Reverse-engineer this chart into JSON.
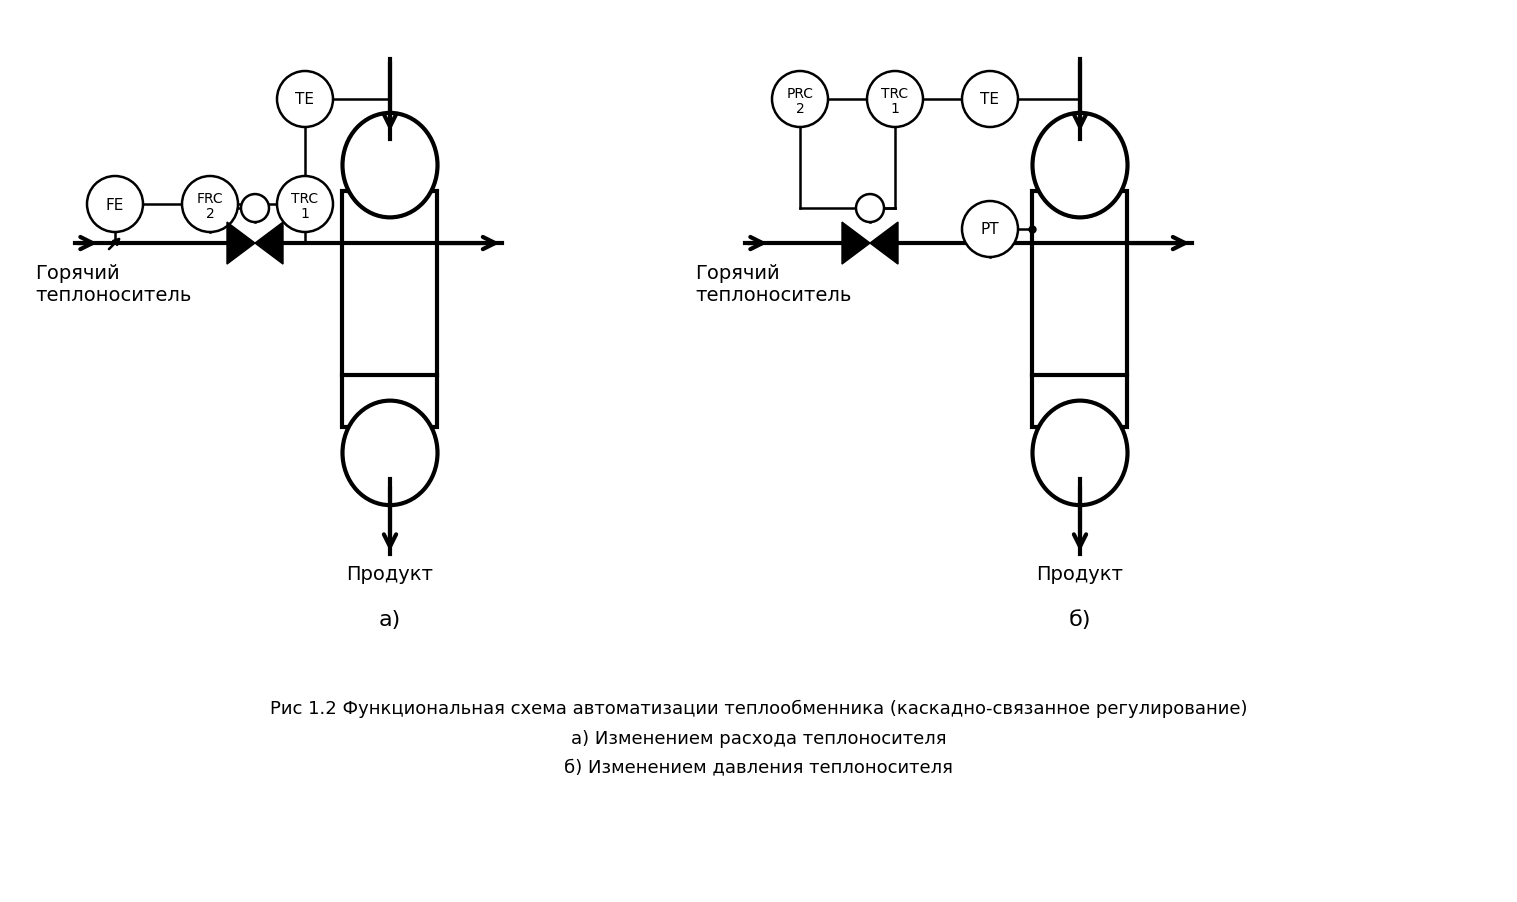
{
  "title_line1": "Рис 1.2 Функциональная схема автоматизации теплообменника (каскадно-связанное регулирование)",
  "title_line2": "а) Изменением расхода теплоносителя",
  "title_line3": "б) Изменением давления теплоносителя",
  "bg_color": "#ffffff",
  "lw_thick": 3.0,
  "lw_thin": 1.8,
  "instrument_r": 28,
  "small_circle_r": 14,
  "font_size_instr": 11,
  "font_size_label": 14,
  "font_size_caption": 13,
  "figw": 15.17,
  "figh": 9.03,
  "dpi": 100
}
